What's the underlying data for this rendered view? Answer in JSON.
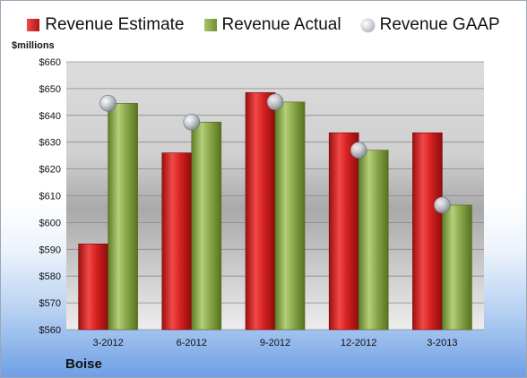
{
  "chart_data": {
    "type": "bar",
    "categories": [
      "3-2012",
      "6-2012",
      "9-2012",
      "12-2012",
      "3-2013"
    ],
    "series": [
      {
        "name": "Revenue Estimate",
        "kind": "bar",
        "color": "#d42121",
        "values": [
          592,
          626,
          648.5,
          633.5,
          633.5
        ]
      },
      {
        "name": "Revenue Actual",
        "kind": "bar",
        "color": "#8aab4a",
        "values": [
          644.5,
          637.5,
          645,
          627,
          606.5
        ]
      },
      {
        "name": "Revenue GAAP",
        "kind": "marker",
        "color": "#c0c6ce",
        "values": [
          644.5,
          637.5,
          645,
          627,
          606.5
        ]
      }
    ],
    "ylim": [
      560,
      660
    ],
    "yticks": [
      560,
      570,
      580,
      590,
      600,
      610,
      620,
      630,
      640,
      650,
      660
    ],
    "ytick_labels": [
      "$560",
      "$570",
      "$580",
      "$590",
      "$600",
      "$610",
      "$620",
      "$630",
      "$640",
      "$650",
      "$660"
    ],
    "ylabel": "$millions",
    "company": "Boise",
    "legend_position": "top",
    "grid": true
  }
}
